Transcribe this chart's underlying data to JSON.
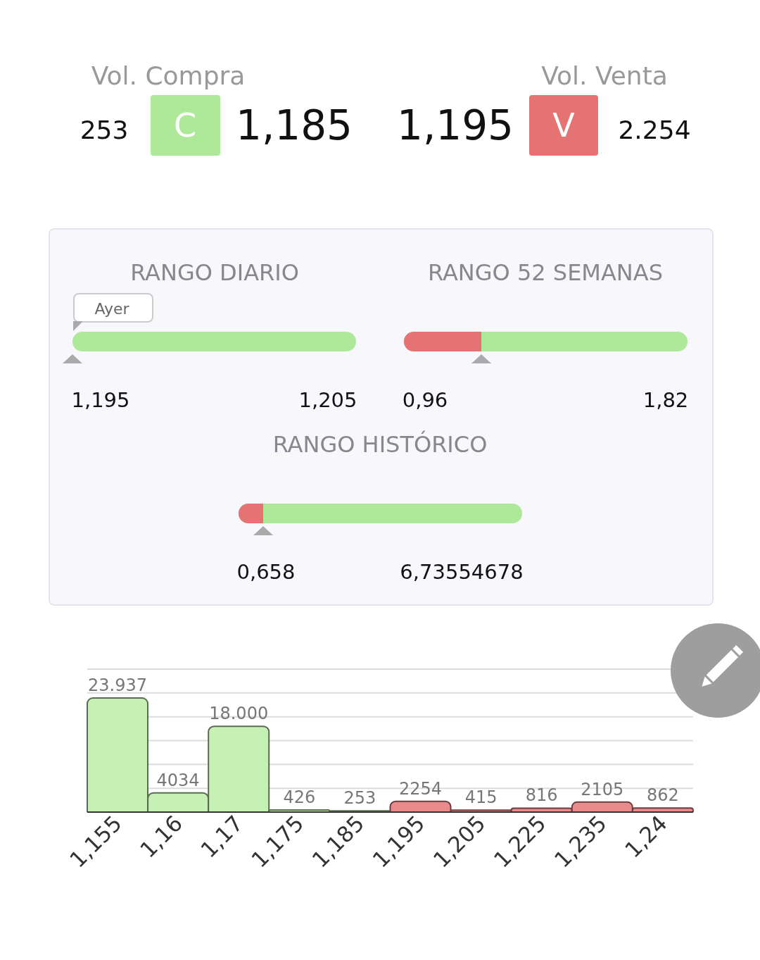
{
  "chart_data": [
    {
      "type": "other",
      "annotations": [
        "Vol. Compra",
        "253",
        "C",
        "1,185",
        "1,195",
        "V",
        "2.254",
        "Vol. Venta",
        "RANGO DIARIO",
        "Ayer",
        "1,195",
        "1,205",
        "RANGO 52 SEMANAS",
        "0,96",
        "1,82",
        "RANGO HISTÓRICO",
        "0,658",
        "6,73554678"
      ]
    },
    {
      "type": "bar",
      "categories": [
        "1,155",
        "1,16",
        "1,17",
        "1,175",
        "1,185",
        "1,195",
        "1,205",
        "1,225",
        "1,235",
        "1,24"
      ],
      "values": [
        23937,
        4034,
        18000,
        426,
        253,
        2254,
        415,
        816,
        2105,
        862
      ],
      "value_labels": [
        "23.937",
        "4034",
        "18.000",
        "426",
        "253",
        "2254",
        "415",
        "816",
        "2105",
        "862"
      ],
      "colors": [
        "#c6f0b4",
        "#c6f0b4",
        "#c6f0b4",
        "#c6f0b4",
        "#c6f0b4",
        "#e98a8c",
        "#e98a8c",
        "#e98a8c",
        "#e98a8c",
        "#e98a8c"
      ],
      "ylim": [
        0,
        30000
      ],
      "tick_labels": "x",
      "grid": "y",
      "legend": false
    }
  ]
}
